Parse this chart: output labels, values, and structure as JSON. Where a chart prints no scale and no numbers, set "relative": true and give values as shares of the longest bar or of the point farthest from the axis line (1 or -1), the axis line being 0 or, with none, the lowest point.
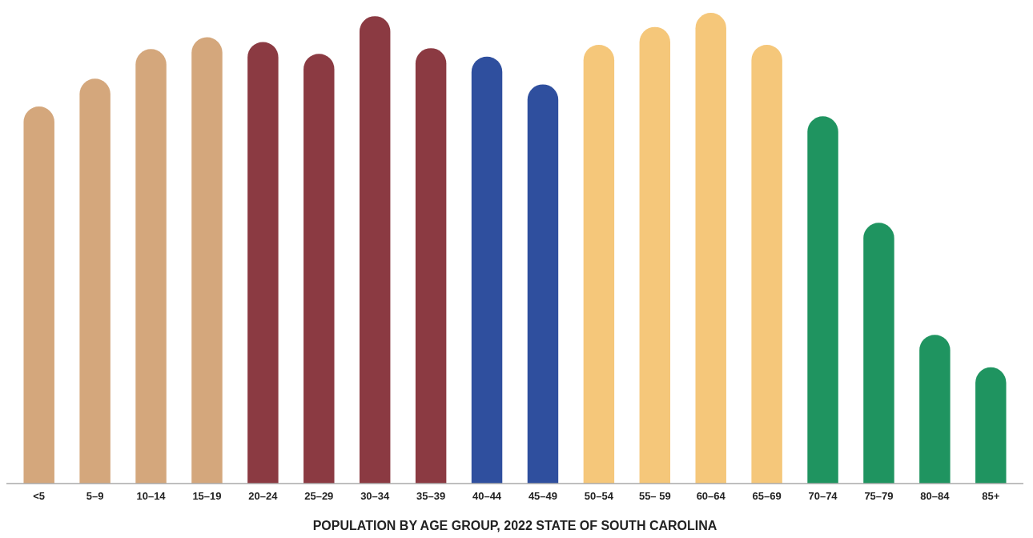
{
  "chart_data": {
    "type": "bar",
    "title": "POPULATION BY AGE GROUP, 2022 STATE OF SOUTH CAROLINA",
    "relative": true,
    "categories": [
      "<5",
      "5–9",
      "10–14",
      "15–19",
      "20–24",
      "25–29",
      "30–34",
      "35–39",
      "40–44",
      "45–49",
      "50–54",
      "55– 59",
      "60–64",
      "65–69",
      "70–74",
      "75–79",
      "80–84",
      "85+"
    ],
    "values": [
      0.801,
      0.86,
      0.923,
      0.948,
      0.938,
      0.913,
      0.993,
      0.925,
      0.907,
      0.848,
      0.932,
      0.97,
      1,
      0.932,
      0.78,
      0.554,
      0.316,
      0.247
    ],
    "colors": [
      "#d4a77c",
      "#d4a77c",
      "#d4a77c",
      "#d4a77c",
      "#8b3a42",
      "#8b3a42",
      "#8b3a42",
      "#8b3a42",
      "#2f4f9e",
      "#2f4f9e",
      "#f5c77a",
      "#f5c77a",
      "#f5c77a",
      "#f5c77a",
      "#1f9460",
      "#1f9460",
      "#1f9460",
      "#1f9460"
    ]
  }
}
